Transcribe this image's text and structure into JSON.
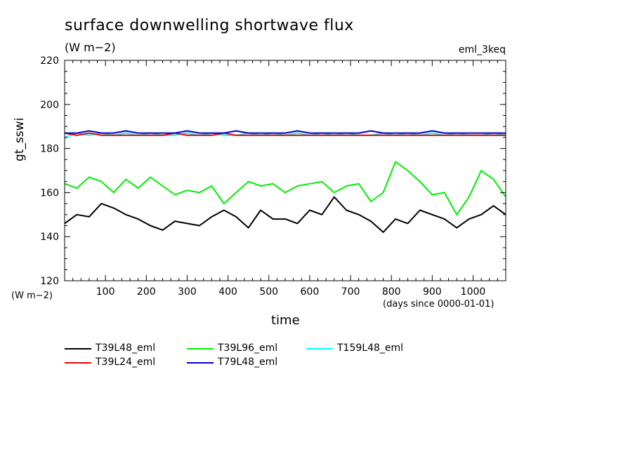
{
  "chart_data": {
    "type": "line",
    "title": "surface downwelling shortwave flux",
    "units": "(W m−2)",
    "tag": "eml_3keq",
    "ylabel": "gt_sswi",
    "ylabel_units": "(W m−2)",
    "xlabel": "time",
    "xlabel_units": "(days since 0000-01-01)",
    "xlim": [
      0,
      1080
    ],
    "ylim": [
      120,
      220
    ],
    "xticks": [
      100,
      200,
      300,
      400,
      500,
      600,
      700,
      800,
      900,
      1000
    ],
    "yticks": [
      120,
      140,
      160,
      180,
      200,
      220
    ],
    "x": [
      0,
      30,
      60,
      90,
      120,
      150,
      180,
      210,
      240,
      270,
      300,
      330,
      360,
      390,
      420,
      450,
      480,
      510,
      540,
      570,
      600,
      630,
      660,
      690,
      720,
      750,
      780,
      810,
      840,
      870,
      900,
      930,
      960,
      990,
      1020,
      1050,
      1080
    ],
    "series": [
      {
        "name": "T39L48_eml",
        "color": "#000000",
        "values": [
          146,
          150,
          149,
          155,
          153,
          150,
          148,
          145,
          143,
          147,
          146,
          145,
          149,
          152,
          149,
          144,
          152,
          148,
          148,
          146,
          152,
          150,
          158,
          152,
          150,
          147,
          142,
          148,
          146,
          152,
          150,
          148,
          144,
          148,
          150,
          154,
          150
        ]
      },
      {
        "name": "T39L96_eml",
        "color": "#00ee00",
        "values": [
          164,
          162,
          167,
          165,
          160,
          166,
          162,
          167,
          163,
          159,
          161,
          160,
          163,
          155,
          160,
          165,
          163,
          164,
          160,
          163,
          164,
          165,
          160,
          163,
          164,
          156,
          160,
          174,
          170,
          165,
          159,
          160,
          150,
          158,
          170,
          166,
          158
        ]
      },
      {
        "name": "T159L48_eml",
        "color": "#00ffff",
        "values": [
          185,
          187,
          186,
          187,
          186,
          187,
          186,
          187,
          186,
          186,
          187,
          186,
          187,
          186,
          186,
          187,
          186,
          187,
          186,
          187,
          186,
          187,
          186,
          187,
          186,
          186,
          187,
          186,
          187,
          186,
          187,
          186,
          187,
          186,
          186,
          187,
          186
        ]
      },
      {
        "name": "T39L24_eml",
        "color": "#ee0000",
        "values": [
          187,
          186,
          187,
          186,
          186,
          186,
          186,
          186,
          186,
          187,
          186,
          186,
          186,
          187,
          186,
          186,
          186,
          186,
          186,
          186,
          186,
          186,
          186,
          186,
          186,
          186,
          186,
          186,
          186,
          186,
          186,
          186,
          186,
          186,
          186,
          186,
          186
        ]
      },
      {
        "name": "T79L48_eml",
        "color": "#0000cc",
        "values": [
          187,
          187,
          188,
          187,
          187,
          188,
          187,
          187,
          187,
          187,
          188,
          187,
          187,
          187,
          188,
          187,
          187,
          187,
          187,
          188,
          187,
          187,
          187,
          187,
          187,
          188,
          187,
          187,
          187,
          187,
          188,
          187,
          187,
          187,
          187,
          187,
          187
        ]
      }
    ],
    "legend": [
      {
        "label": "T39L48_eml",
        "color": "#000000"
      },
      {
        "label": "T39L96_eml",
        "color": "#00ee00"
      },
      {
        "label": "T159L48_eml",
        "color": "#00ffff"
      },
      {
        "label": "T39L24_eml",
        "color": "#ee0000"
      },
      {
        "label": "T79L48_eml",
        "color": "#0000cc"
      }
    ],
    "grid": false,
    "legend_position": "bottom-left"
  }
}
